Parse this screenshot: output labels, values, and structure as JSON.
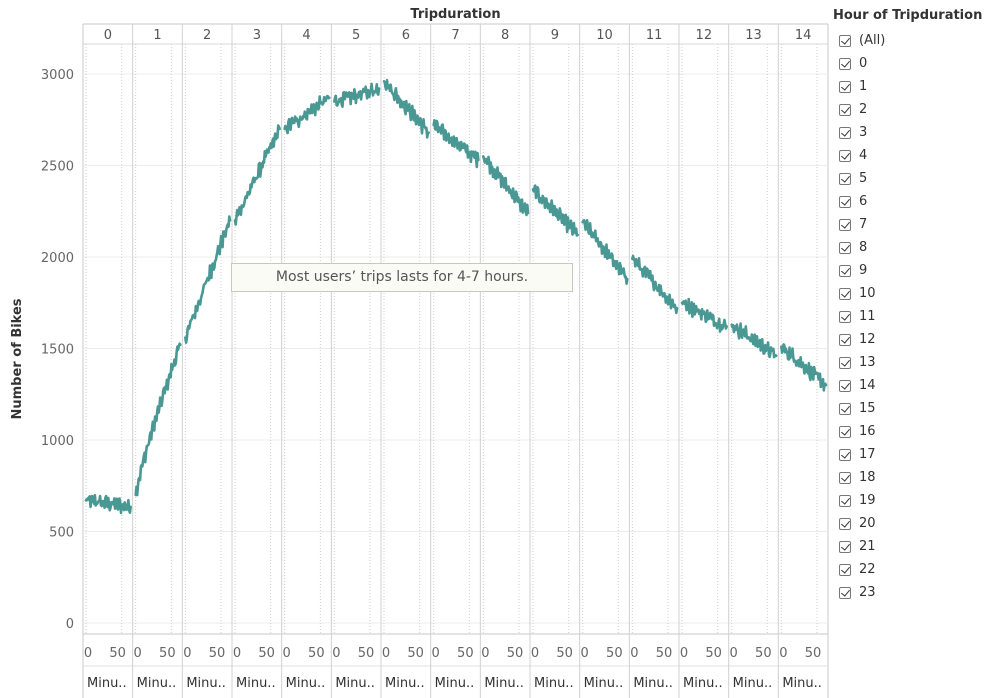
{
  "chart_data": {
    "type": "line",
    "title": "",
    "column_header_title": "Tripduration",
    "panel_dimension_label": "Tripduration",
    "panels": [
      "0",
      "1",
      "2",
      "3",
      "4",
      "5",
      "6",
      "7",
      "8",
      "9",
      "10",
      "11",
      "12",
      "13",
      "14"
    ],
    "panel_x_ticks": [
      "0",
      "50"
    ],
    "panel_x_label": "Minu..",
    "ylabel": "Number of Bikes",
    "ylim": [
      0,
      3100
    ],
    "yticks": [
      "0",
      "500",
      "1000",
      "1500",
      "2000",
      "2500",
      "3000"
    ],
    "ytick_values": [
      0,
      500,
      1000,
      1500,
      2000,
      2500,
      3000
    ],
    "series_color": "#4a9894",
    "grid": "horizontal",
    "series": [
      {
        "panel": "0",
        "start": 670,
        "end": 635
      },
      {
        "panel": "1",
        "start": 700,
        "end": 1520
      },
      {
        "panel": "2",
        "start": 1560,
        "end": 2200
      },
      {
        "panel": "3",
        "start": 2200,
        "end": 2700
      },
      {
        "panel": "4",
        "start": 2700,
        "end": 2870
      },
      {
        "panel": "5",
        "start": 2850,
        "end": 2920
      },
      {
        "panel": "6",
        "start": 2960,
        "end": 2680
      },
      {
        "panel": "7",
        "start": 2720,
        "end": 2530
      },
      {
        "panel": "8",
        "start": 2550,
        "end": 2240
      },
      {
        "panel": "9",
        "start": 2370,
        "end": 2120
      },
      {
        "panel": "10",
        "start": 2190,
        "end": 1880
      },
      {
        "panel": "11",
        "start": 1990,
        "end": 1720
      },
      {
        "panel": "12",
        "start": 1750,
        "end": 1620
      },
      {
        "panel": "13",
        "start": 1630,
        "end": 1460
      },
      {
        "panel": "14",
        "start": 1510,
        "end": 1300
      }
    ],
    "annotation": "Most users’ trips lasts for 4-7 hours."
  },
  "legend": {
    "title": "Hour of Tripduration",
    "items": [
      "(All)",
      "0",
      "1",
      "2",
      "3",
      "4",
      "5",
      "6",
      "7",
      "8",
      "9",
      "10",
      "11",
      "12",
      "13",
      "14",
      "15",
      "16",
      "17",
      "18",
      "19",
      "20",
      "21",
      "22",
      "23"
    ]
  }
}
